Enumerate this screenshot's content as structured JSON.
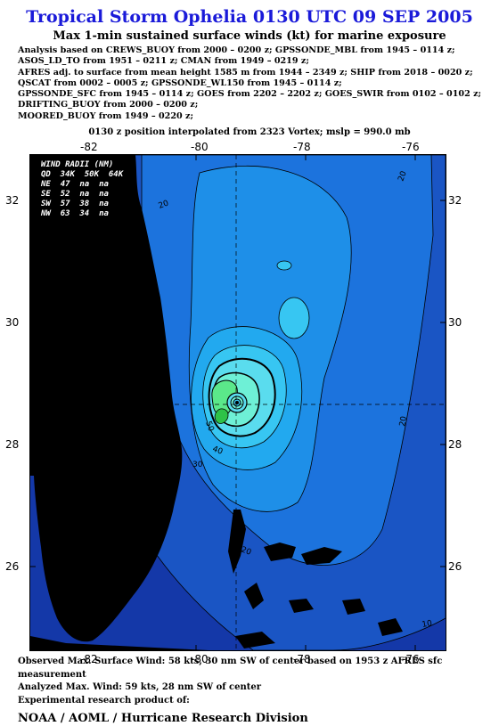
{
  "title": "Tropical Storm Ophelia 0130 UTC 09 SEP 2005",
  "subtitle": "Max 1-min sustained surface winds (kt) for marine exposure",
  "sources": [
    "Analysis based on  CREWS_BUOY from 2000 – 0200 z;  GPSSONDE_MBL from 1945 – 0114 z;",
    "ASOS_LD_TO from 1951 – 0211 z;  CMAN from 1949 – 0219 z;",
    "AFRES adj. to surface from mean height 1585 m from 1944 – 2349 z;  SHIP from 2018 – 0020 z;",
    "QSCAT from 0002 – 0005 z;  GPSSONDE_WL150 from 1945 – 0114 z;",
    "GPSSONDE_SFC from 1945 – 0114 z;  GOES from 2202 – 2202 z;  GOES_SWIR from 0102 – 0102 z;",
    "DRIFTING_BUOY from 2000 – 0200 z;",
    "MOORED_BUOY from 1949 – 0220 z;"
  ],
  "position_note": "0130 z position interpolated from 2323 Vortex; mslp = 990.0 mb",
  "map": {
    "lon_labels": [
      "-82",
      "-80",
      "-78",
      "-76"
    ],
    "lat_labels": [
      "32",
      "30",
      "28",
      "26"
    ],
    "lon_range": [
      -83.0,
      -75.5
    ],
    "lat_range": [
      24.8,
      32.9
    ],
    "center_lon": -79.3,
    "center_lat": 28.7,
    "contour_labels": [
      "20",
      "10",
      "20",
      "30",
      "40",
      "50",
      "20",
      "20",
      "10"
    ],
    "colors": {
      "level_10": "#1438a8",
      "level_15": "#1a55c4",
      "level_20": "#1c73dd",
      "level_25": "#1e8fe8",
      "level_30": "#22a9ef",
      "level_35": "#37c6f2",
      "level_40": "#5adcee",
      "level_45": "#6ef0d6",
      "level_50": "#5be88a",
      "level_55": "#2ec247",
      "land": "#000000"
    }
  },
  "wind_radii": {
    "header": "WIND RADII (NM)",
    "columns": "QD  34K  50K  64K",
    "rows": [
      {
        "qd": "NE",
        "r34": "47",
        "r50": "na",
        "r64": "na"
      },
      {
        "qd": "SE",
        "r34": "52",
        "r50": "na",
        "r64": "na"
      },
      {
        "qd": "SW",
        "r34": "57",
        "r50": "38",
        "r64": "na"
      },
      {
        "qd": "NW",
        "r34": "63",
        "r50": "34",
        "r64": "na"
      }
    ]
  },
  "footer": {
    "observed": "Observed Max. Surface Wind: 58 kts, 30 nm SW of center based on 1953 z AFRES sfc measurement",
    "analyzed": "Analyzed Max. Wind: 59 kts, 28 nm SW of center",
    "product": "Experimental research product of:",
    "org": "NOAA / AOML / Hurricane Research Division"
  }
}
